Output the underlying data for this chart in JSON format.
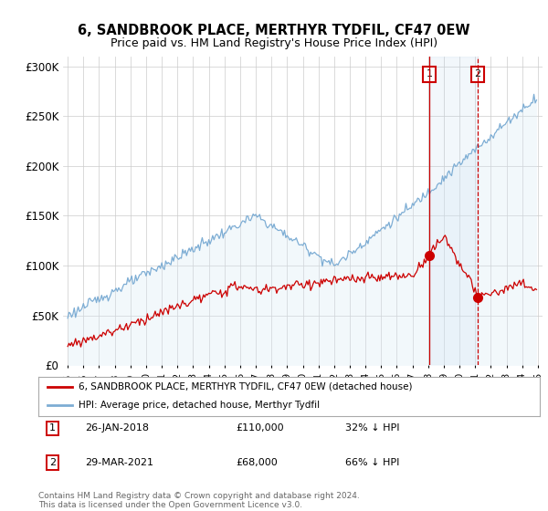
{
  "title": "6, SANDBROOK PLACE, MERTHYR TYDFIL, CF47 0EW",
  "subtitle": "Price paid vs. HM Land Registry's House Price Index (HPI)",
  "background_color": "#ffffff",
  "plot_bg_color": "#ffffff",
  "grid_color": "#cccccc",
  "red_line_color": "#cc0000",
  "blue_line_color": "#7dadd4",
  "blue_fill_color": "#d6e8f5",
  "vline1_color": "#cc0000",
  "vline1_style": "solid",
  "vline2_color": "#cc0000",
  "vline2_style": "dashed",
  "marker1_label": "1",
  "marker2_label": "2",
  "legend_line1": "6, SANDBROOK PLACE, MERTHYR TYDFIL, CF47 0EW (detached house)",
  "legend_line2": "HPI: Average price, detached house, Merthyr Tydfil",
  "footer": "Contains HM Land Registry data © Crown copyright and database right 2024.\nThis data is licensed under the Open Government Licence v3.0.",
  "ylim": [
    0,
    310000
  ],
  "yticks": [
    0,
    50000,
    100000,
    150000,
    200000,
    250000,
    300000
  ],
  "ytick_labels": [
    "£0",
    "£50K",
    "£100K",
    "£150K",
    "£200K",
    "£250K",
    "£300K"
  ],
  "xlim_left": 1994.7,
  "xlim_right": 2025.3,
  "marker1_year": 2018.05,
  "marker2_year": 2021.2,
  "marker1_price": 110000,
  "marker2_price": 68000
}
